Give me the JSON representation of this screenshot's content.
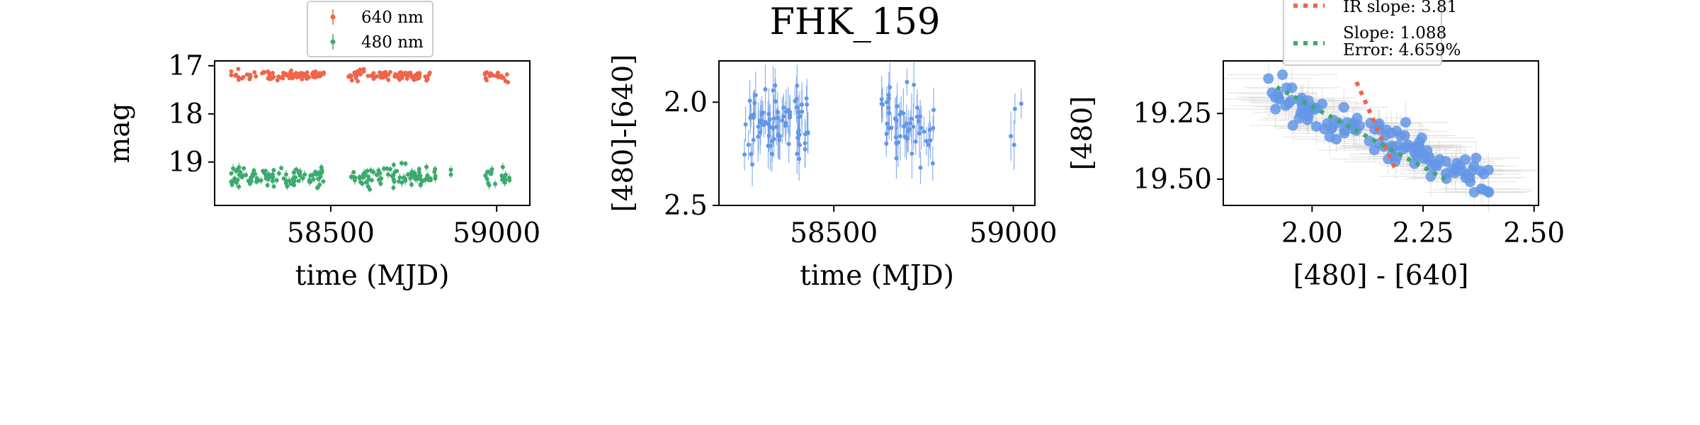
{
  "figure_title": "FHK_159",
  "colors": {
    "red": "#F0644A",
    "green": "#3CAA6E",
    "blue": "#6496E6",
    "error_gray": "#D0D0D0"
  },
  "chart_data": [
    {
      "type": "scatter",
      "panel": "magnitude-lightcurve",
      "title": "",
      "xlabel": "time (MJD)",
      "ylabel": "mag",
      "xlim": [
        58150,
        59100
      ],
      "ylim": [
        19.9,
        16.9
      ],
      "y_inverted": true,
      "xticks": [
        "58500",
        "59000"
      ],
      "xtick_values": [
        58500,
        59000
      ],
      "yticks": [
        "17",
        "18",
        "19"
      ],
      "ytick_values": [
        17,
        18,
        19
      ],
      "grid": false,
      "legend_position": "top-center",
      "series": [
        {
          "name": "640 nm",
          "color": "#F0644A",
          "mean": 17.2,
          "scatter": 0.05,
          "error": 0.04,
          "segments": [
            [
              58200,
              58480,
              90
            ],
            [
              58550,
              58800,
              80
            ],
            [
              58960,
              59040,
              22
            ]
          ]
        },
        {
          "name": "480 nm",
          "color": "#3CAA6E",
          "mean": 19.3,
          "scatter": 0.1,
          "error": 0.07,
          "segments": [
            [
              58200,
              58480,
              90
            ],
            [
              58560,
              58820,
              80
            ],
            [
              58860,
              58870,
              2
            ],
            [
              58960,
              59040,
              22
            ]
          ]
        }
      ]
    },
    {
      "type": "scatter",
      "panel": "color-lightcurve",
      "title": "FHK_159",
      "xlabel": "time (MJD)",
      "ylabel": "[480]-[640]",
      "xlim": [
        58180,
        59060
      ],
      "ylim": [
        2.5,
        1.8
      ],
      "y_inverted": true,
      "xticks": [
        "58500",
        "59000"
      ],
      "xtick_values": [
        58500,
        59000
      ],
      "yticks": [
        "2.0",
        "2.5"
      ],
      "ytick_values": [
        2.0,
        2.5
      ],
      "grid": false,
      "series": [
        {
          "name": "",
          "color": "#6496E6",
          "mean": 2.1,
          "scatter": 0.09,
          "error": 0.09,
          "segments": [
            [
              58250,
              58430,
              80
            ],
            [
              58630,
              58780,
              55
            ],
            [
              58970,
              59025,
              4
            ]
          ]
        }
      ]
    },
    {
      "type": "scatter",
      "panel": "color-magnitude",
      "title": "",
      "xlabel": "[480] - [640]",
      "ylabel": "[480]",
      "xlim": [
        1.8,
        2.51
      ],
      "ylim": [
        19.6,
        19.05
      ],
      "y_inverted": true,
      "xticks": [
        "2.00",
        "2.25",
        "2.50"
      ],
      "xtick_values": [
        2.0,
        2.25,
        2.5
      ],
      "yticks": [
        "19.25",
        "19.50"
      ],
      "ytick_values": [
        19.25,
        19.5
      ],
      "grid": false,
      "legend_position": "top-center",
      "points": {
        "color": "#6496E6",
        "count": 120,
        "x_range": [
          1.9,
          2.4
        ],
        "y_at_x_min": 19.18,
        "y_at_x_max": 19.5,
        "scatter_y": 0.04
      },
      "fit_lines": [
        {
          "label": "IR slope: 3.81",
          "color": "#F0644A",
          "style": "dotted",
          "x": [
            2.1,
            2.19
          ],
          "y": [
            19.13,
            19.47
          ]
        },
        {
          "label_lines": [
            "Slope: 1.088",
            "Error: 4.659%"
          ],
          "color": "#3CAA6E",
          "style": "dotted",
          "x": [
            1.92,
            2.3
          ],
          "y": [
            19.15,
            19.5
          ]
        }
      ]
    }
  ]
}
